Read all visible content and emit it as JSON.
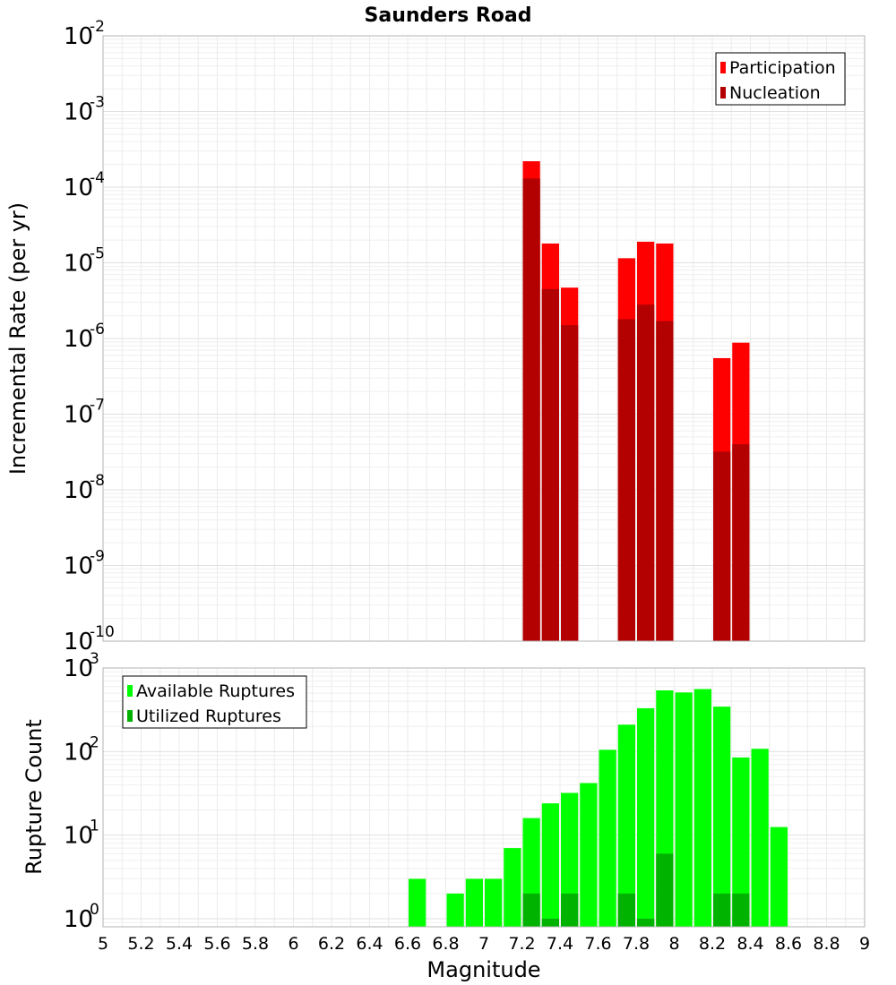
{
  "chart_data": [
    {
      "type": "bar",
      "title": "Saunders Road",
      "xlabel": "",
      "ylabel": "Incremental Rate (per yr)",
      "y_scale": "log",
      "ylim": [
        1e-10,
        0.01
      ],
      "xlim": [
        5,
        9
      ],
      "bar_width": 0.1,
      "grid": true,
      "legend_position": "top-right",
      "y_tick_labels": [
        {
          "base": "10",
          "exp": "-10"
        },
        {
          "base": "10",
          "exp": "-9"
        },
        {
          "base": "10",
          "exp": "-8"
        },
        {
          "base": "10",
          "exp": "-7"
        },
        {
          "base": "10",
          "exp": "-6"
        },
        {
          "base": "10",
          "exp": "-5"
        },
        {
          "base": "10",
          "exp": "-4"
        },
        {
          "base": "10",
          "exp": "-3"
        },
        {
          "base": "10",
          "exp": "-2"
        }
      ],
      "x": [
        7.25,
        7.35,
        7.45,
        7.75,
        7.85,
        7.95,
        8.25,
        8.35
      ],
      "series": [
        {
          "name": "Participation",
          "color": "#ff0000",
          "values": [
            0.00022,
            1.8e-05,
            4.7e-06,
            1.15e-05,
            1.9e-05,
            1.8e-05,
            5.5e-07,
            8.8e-07
          ]
        },
        {
          "name": "Nucleation",
          "color": "#b30000",
          "values": [
            0.00013,
            4.5e-06,
            1.5e-06,
            1.8e-06,
            2.8e-06,
            1.7e-06,
            3.2e-08,
            4e-08
          ]
        }
      ]
    },
    {
      "type": "bar",
      "title": "",
      "xlabel": "Magnitude",
      "ylabel": "Rupture Count",
      "y_scale": "log",
      "ylim": [
        0.8,
        1000
      ],
      "xlim": [
        5,
        9
      ],
      "bar_width": 0.1,
      "grid": true,
      "legend_position": "top-left",
      "y_tick_labels": [
        {
          "base": "10",
          "exp": "0"
        },
        {
          "base": "10",
          "exp": "1"
        },
        {
          "base": "10",
          "exp": "2"
        },
        {
          "base": "10",
          "exp": "3"
        }
      ],
      "x_tick_labels": [
        "5",
        "5.2",
        "5.4",
        "5.6",
        "5.8",
        "6",
        "6.2",
        "6.4",
        "6.6",
        "6.8",
        "7",
        "7.2",
        "7.4",
        "7.6",
        "7.8",
        "8",
        "8.2",
        "8.4",
        "8.6",
        "8.8",
        "9"
      ],
      "x": [
        6.65,
        6.85,
        6.95,
        7.05,
        7.15,
        7.25,
        7.35,
        7.45,
        7.55,
        7.65,
        7.75,
        7.85,
        7.95,
        8.05,
        8.15,
        8.25,
        8.35,
        8.45,
        8.55
      ],
      "series": [
        {
          "name": "Available Ruptures",
          "color": "#00ff00",
          "values": [
            3,
            2,
            3,
            3,
            7,
            16,
            24,
            32,
            42,
            105,
            210,
            330,
            540,
            510,
            560,
            345,
            85,
            108,
            12.5
          ]
        },
        {
          "name": "Utilized Ruptures",
          "color": "#00b300",
          "values": [
            null,
            null,
            null,
            null,
            null,
            2,
            1,
            2,
            null,
            null,
            2,
            1,
            6,
            null,
            null,
            2,
            2,
            null,
            null
          ]
        }
      ]
    }
  ]
}
